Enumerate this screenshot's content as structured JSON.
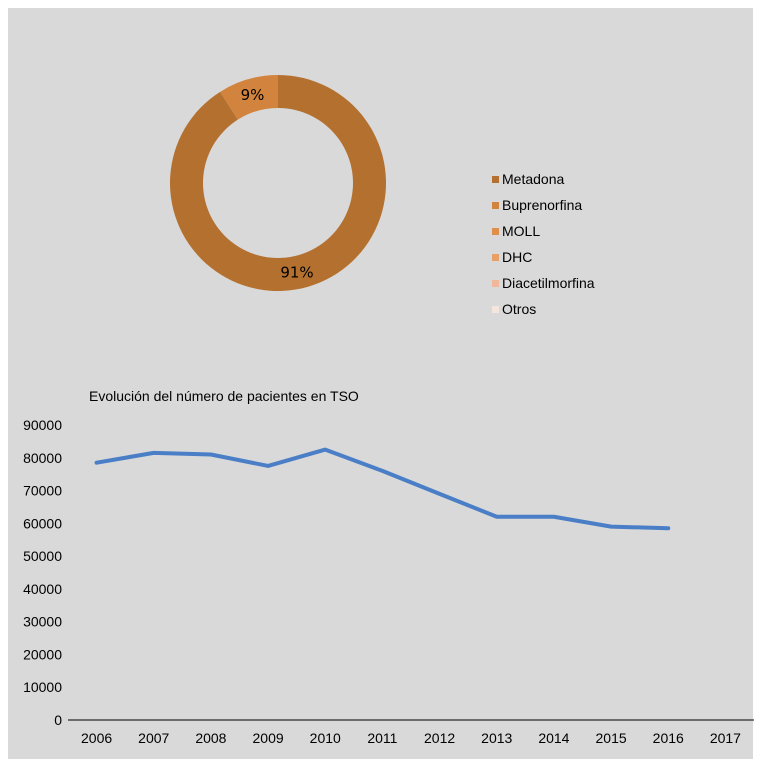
{
  "colors": {
    "background": "#d9d9d9",
    "line": "#4a7ec6"
  },
  "chart_data": [
    {
      "type": "pie",
      "variant": "donut",
      "title": "",
      "legend_position": "right",
      "slices": [
        {
          "label": "Metadona",
          "value": 91,
          "display": "91%",
          "color": "#b4702f"
        },
        {
          "label": "Buprenorfina",
          "value": 9,
          "display": "9%",
          "color": "#d2843e"
        },
        {
          "label": "MOLL",
          "value": 0,
          "display": "",
          "color": "#e08f4a"
        },
        {
          "label": "DHC",
          "value": 0,
          "display": "",
          "color": "#e9a066"
        },
        {
          "label": "Diacetilmorfina",
          "value": 0,
          "display": "",
          "color": "#f0b79a"
        },
        {
          "label": "Otros",
          "value": 0,
          "display": "",
          "color": "#f4e6dc"
        }
      ]
    },
    {
      "type": "line",
      "title": "Evolución del número de pacientes en TSO",
      "xlabel": "",
      "ylabel": "",
      "categories": [
        "2006",
        "2007",
        "2008",
        "2009",
        "2010",
        "2011",
        "2012",
        "2013",
        "2014",
        "2015",
        "2016",
        "2017"
      ],
      "ylim": [
        0,
        90000
      ],
      "yticks": [
        "0",
        "10000",
        "20000",
        "30000",
        "40000",
        "50000",
        "60000",
        "70000",
        "80000",
        "90000"
      ],
      "grid": false,
      "series": [
        {
          "values": [
            78500,
            81500,
            81000,
            77500,
            82500,
            76000,
            69000,
            62000,
            62000,
            59000,
            58500,
            null
          ]
        }
      ]
    }
  ]
}
